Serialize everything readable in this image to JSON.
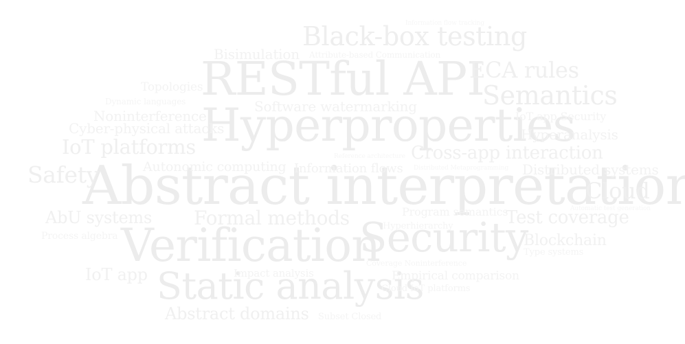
{
  "colors": {
    "background": "#ffffff",
    "large": "#ededed",
    "medium": "#f0f0f0",
    "small": "#f4f4f4",
    "tiny": "#f6f6f6"
  },
  "words": [
    "Abstract interpretation",
    "Hyperproperties",
    "RESTful API",
    "Verification",
    "Security",
    "Static analysis",
    "Black-box testing",
    "Semantics",
    "ECA rules",
    "Cloud",
    "IoT platforms",
    "Safety",
    "Formal methods",
    "Test coverage",
    "AbU systems",
    "Cross-app interaction",
    "Abstract domains",
    "Blockchain",
    "IoT app",
    "Hyperanalysis",
    "Distributed systems",
    "Information flows",
    "Autonomic computing",
    "Software watermarking",
    "Noninterference",
    "Cyber-physical attacks",
    "Bisimulation",
    "Attribute-based Communication",
    "Topologies",
    "Dynamic languages",
    "IoT app Security",
    "Program semantics",
    "Impact analysis",
    "Empirical comparison",
    "Hyperhierarchy",
    "Process algebra",
    "Type systems",
    "Cloud IoT platforms",
    "Subset Closed",
    "Coverage Noninterference",
    "Information flow tracking",
    "Reference architecture",
    "Automatic test generation",
    "Distributed Metaprogramming"
  ]
}
